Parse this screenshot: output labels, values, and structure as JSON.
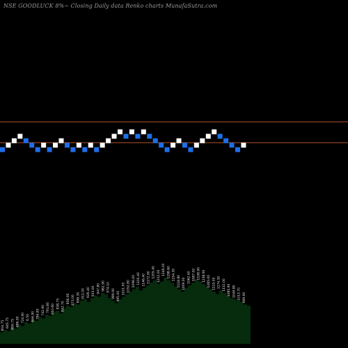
{
  "header": {
    "text": "NSE GOODLUCK 8%~  Closing Daily data  Renko  charts MunafaSutra.com"
  },
  "colors": {
    "background": "#000000",
    "up_brick": "#ffffff",
    "down_brick": "#1e6fe8",
    "level_line": "#b4562a",
    "volume_fill": "#062b0d",
    "volume_labels": "#e6e6e6"
  },
  "chart_data": {
    "type": "renko",
    "title": "NSE GOODLUCK 8%~ Closing Daily data Renko charts MunafaSutra.com",
    "brick_size_label": "8%",
    "horizontal_levels": [
      "upper",
      "lower"
    ],
    "bricks": [
      {
        "dir": "down",
        "level": 0
      },
      {
        "dir": "up",
        "level": 1
      },
      {
        "dir": "up",
        "level": 2
      },
      {
        "dir": "up",
        "level": 3
      },
      {
        "dir": "down",
        "level": 2
      },
      {
        "dir": "down",
        "level": 1
      },
      {
        "dir": "down",
        "level": 0
      },
      {
        "dir": "up",
        "level": 1
      },
      {
        "dir": "down",
        "level": 0
      },
      {
        "dir": "up",
        "level": 1
      },
      {
        "dir": "up",
        "level": 2
      },
      {
        "dir": "down",
        "level": 1
      },
      {
        "dir": "down",
        "level": 0
      },
      {
        "dir": "up",
        "level": 1
      },
      {
        "dir": "down",
        "level": 0
      },
      {
        "dir": "up",
        "level": 1
      },
      {
        "dir": "down",
        "level": 0
      },
      {
        "dir": "up",
        "level": 1
      },
      {
        "dir": "up",
        "level": 2
      },
      {
        "dir": "up",
        "level": 3
      },
      {
        "dir": "up",
        "level": 4
      },
      {
        "dir": "down",
        "level": 3
      },
      {
        "dir": "up",
        "level": 4
      },
      {
        "dir": "down",
        "level": 3
      },
      {
        "dir": "up",
        "level": 4
      },
      {
        "dir": "down",
        "level": 3
      },
      {
        "dir": "down",
        "level": 2
      },
      {
        "dir": "down",
        "level": 1
      },
      {
        "dir": "down",
        "level": 0
      },
      {
        "dir": "up",
        "level": 1
      },
      {
        "dir": "up",
        "level": 2
      },
      {
        "dir": "down",
        "level": 1
      },
      {
        "dir": "down",
        "level": 0
      },
      {
        "dir": "up",
        "level": 1
      },
      {
        "dir": "up",
        "level": 2
      },
      {
        "dir": "up",
        "level": 3
      },
      {
        "dir": "up",
        "level": 4
      },
      {
        "dir": "down",
        "level": 3
      },
      {
        "dir": "down",
        "level": 2
      },
      {
        "dir": "down",
        "level": 1
      },
      {
        "dir": "down",
        "level": 0
      },
      {
        "dir": "up",
        "level": 1
      }
    ],
    "volume": [
      18,
      22,
      20,
      26,
      24,
      30,
      28,
      34,
      32,
      38,
      36,
      42,
      40,
      46,
      44,
      50,
      52,
      48,
      56,
      60,
      58,
      64,
      62,
      68,
      70,
      66,
      72,
      76,
      74,
      80,
      78,
      72,
      68,
      64,
      70,
      74,
      78,
      82,
      86,
      90,
      84,
      88,
      92,
      96,
      100,
      94,
      98,
      104,
      100,
      96,
      90,
      86,
      82,
      88,
      92,
      96,
      102,
      98,
      94,
      90,
      86,
      82,
      78,
      84,
      80,
      76,
      72,
      70,
      68,
      66,
      62,
      60
    ],
    "volume_labels": [
      "604.75",
      "645.75",
      "699.75",
      "686.90",
      "724.90",
      "6.50",
      "644.90",
      "784.85",
      "742.90",
      "791.80",
      "810.60",
      "838.75",
      "842.70",
      "856.95",
      "873.00",
      "896.30",
      "911.00",
      "926.40",
      "933.00",
      "947.80",
      "962.90",
      "974.10",
      "989.90",
      "995.00",
      "1021.00",
      "1052.80",
      "1096.00",
      "1100.40",
      "1146.40",
      "1172.90",
      "1205.40",
      "1212.00",
      "1246.00",
      "1298.60",
      "1154.30",
      "1118.80",
      "1009.00",
      "1062.40",
      "1087.00",
      "1198.90",
      "1238.90",
      "1265.00",
      "1215.00",
      "1174.30",
      "1132.00",
      "1085.90",
      "1049.80",
      "1013.70",
      "989.90"
    ]
  }
}
